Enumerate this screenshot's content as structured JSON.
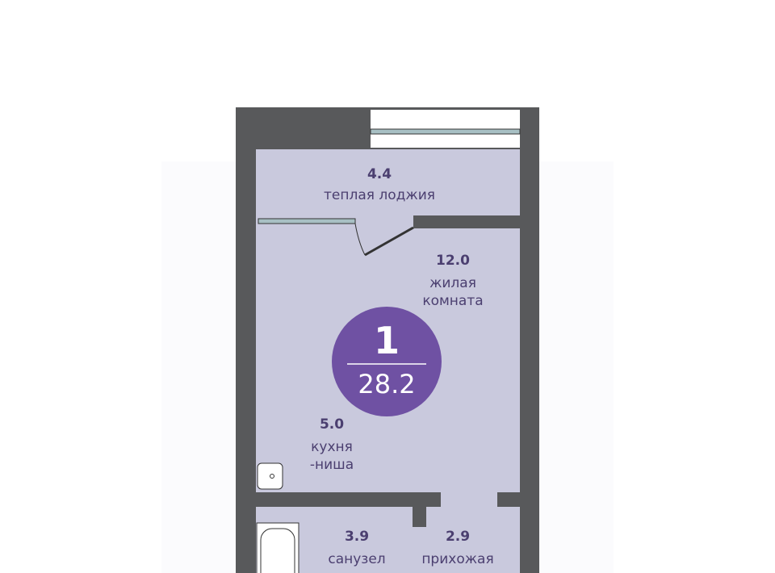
{
  "plan": {
    "colors": {
      "wall": "#58595b",
      "room": "#c9c9dd",
      "text": "#4b3f70",
      "badge": "#6f51a3",
      "window": "#a8c0c4"
    },
    "rooms": [
      {
        "area": "4.4",
        "name": "теплая лоджия"
      },
      {
        "area": "12.0",
        "name_line1": "жилая",
        "name_line2": "комната"
      },
      {
        "area": "5.0",
        "name_line1": "кухня",
        "name_line2": "-ниша"
      },
      {
        "area": "3.9",
        "name": "санузел"
      },
      {
        "area": "2.9",
        "name": "прихожая"
      }
    ],
    "badge": {
      "rooms": "1",
      "total_area": "28.2"
    }
  }
}
